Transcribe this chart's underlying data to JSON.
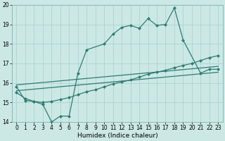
{
  "xlabel": "Humidex (Indice chaleur)",
  "bg_color": "#cce8e5",
  "grid_color": "#aad4d0",
  "line_color": "#2e7d72",
  "xlim": [
    -0.5,
    23.5
  ],
  "ylim": [
    14,
    20
  ],
  "xticks": [
    0,
    1,
    2,
    3,
    4,
    5,
    6,
    7,
    8,
    9,
    10,
    11,
    12,
    13,
    14,
    15,
    16,
    17,
    18,
    19,
    20,
    21,
    22,
    23
  ],
  "yticks": [
    14,
    15,
    16,
    17,
    18,
    19,
    20
  ],
  "line1_x": [
    0,
    1,
    2,
    3,
    4,
    5,
    6,
    7,
    8,
    10,
    11,
    12,
    13,
    14,
    15,
    16,
    17,
    18,
    19,
    21,
    22,
    23
  ],
  "line1_y": [
    15.8,
    15.1,
    15.05,
    14.9,
    14.0,
    14.3,
    14.3,
    16.5,
    17.7,
    18.0,
    18.5,
    18.85,
    18.95,
    18.8,
    19.3,
    18.95,
    19.0,
    19.85,
    18.2,
    16.5,
    16.7,
    16.7
  ],
  "line2_x": [
    0,
    1,
    2,
    3,
    4,
    5,
    6,
    7,
    8,
    9,
    10,
    11,
    12,
    13,
    14,
    15,
    16,
    17,
    18,
    19,
    20,
    21,
    22,
    23
  ],
  "line2_y": [
    15.5,
    15.2,
    15.05,
    15.0,
    15.05,
    15.15,
    15.25,
    15.4,
    15.55,
    15.65,
    15.8,
    15.95,
    16.05,
    16.15,
    16.3,
    16.45,
    16.55,
    16.65,
    16.78,
    16.9,
    17.0,
    17.15,
    17.3,
    17.4
  ],
  "line3_x": [
    0,
    23
  ],
  "line3_y": [
    15.6,
    16.55
  ],
  "line4_x": [
    0,
    23
  ],
  "line4_y": [
    15.9,
    16.85
  ]
}
